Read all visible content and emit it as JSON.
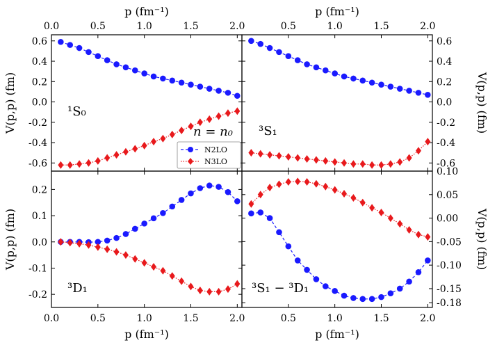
{
  "figure": {
    "x_axis_label": "p (fm⁻¹)",
    "y_axis_label": "V(p,p) (fm)"
  },
  "legend": {
    "density": "n = n₀",
    "entries": [
      {
        "name": "N2LO",
        "color": "#1a1aff",
        "marker": "circle",
        "line": "dashed"
      },
      {
        "name": "N3LO",
        "color": "#e8191c",
        "marker": "diamond",
        "line": "dotted"
      }
    ]
  },
  "chart_data": [
    {
      "type": "line",
      "panel": "top-left",
      "title": "¹S₀",
      "xlabel": "p (fm⁻¹)",
      "ylabel": "V(p,p) (fm)",
      "xlim": [
        0.0,
        2.05
      ],
      "ylim": [
        -0.68,
        0.66
      ],
      "xticks": [
        0.0,
        0.5,
        1.0,
        1.5,
        2.0
      ],
      "xticklabels": [
        "0.0",
        "0.5",
        "1.0",
        "1.5",
        "2.0"
      ],
      "yticks": [
        0.6,
        0.4,
        0.2,
        0.0,
        -0.2,
        -0.4,
        -0.6
      ],
      "yticklabels": [
        "0.6",
        "0.4",
        "0.2",
        "0.0",
        "-0.2",
        "-0.4",
        "-0.6"
      ],
      "x": [
        0.1,
        0.2,
        0.3,
        0.4,
        0.5,
        0.6,
        0.7,
        0.8,
        0.9,
        1.0,
        1.1,
        1.2,
        1.3,
        1.4,
        1.5,
        1.6,
        1.7,
        1.8,
        1.9,
        2.0
      ],
      "series": [
        {
          "name": "N2LO",
          "values": [
            0.59,
            0.56,
            0.53,
            0.49,
            0.45,
            0.41,
            0.37,
            0.34,
            0.31,
            0.28,
            0.25,
            0.23,
            0.21,
            0.19,
            0.17,
            0.15,
            0.13,
            0.11,
            0.09,
            0.06
          ]
        },
        {
          "name": "N3LO",
          "values": [
            -0.62,
            -0.62,
            -0.61,
            -0.6,
            -0.58,
            -0.55,
            -0.52,
            -0.49,
            -0.46,
            -0.43,
            -0.39,
            -0.36,
            -0.32,
            -0.28,
            -0.24,
            -0.2,
            -0.17,
            -0.14,
            -0.11,
            -0.09
          ]
        }
      ]
    },
    {
      "type": "line",
      "panel": "top-right",
      "title": "³S₁",
      "xlabel": "p (fm⁻¹)",
      "ylabel": "V(p,p) (fm)",
      "xlim": [
        0.0,
        2.05
      ],
      "ylim": [
        -0.68,
        0.66
      ],
      "xticks": [
        0.5,
        1.0,
        1.5,
        2.0
      ],
      "xticklabels": [
        "0.5",
        "1.0",
        "1.5",
        "2.0"
      ],
      "yticks": [
        0.6,
        0.4,
        0.2,
        0.0,
        -0.2,
        -0.4,
        -0.6
      ],
      "yticklabels": [
        "0.6",
        "0.4",
        "0.2",
        "0.0",
        "-0.2",
        "-0.4",
        "-0.6"
      ],
      "x": [
        0.1,
        0.2,
        0.3,
        0.4,
        0.5,
        0.6,
        0.7,
        0.8,
        0.9,
        1.0,
        1.1,
        1.2,
        1.3,
        1.4,
        1.5,
        1.6,
        1.7,
        1.8,
        1.9,
        2.0
      ],
      "series": [
        {
          "name": "N2LO",
          "values": [
            0.6,
            0.57,
            0.53,
            0.49,
            0.45,
            0.41,
            0.37,
            0.34,
            0.31,
            0.28,
            0.25,
            0.23,
            0.21,
            0.19,
            0.17,
            0.15,
            0.13,
            0.11,
            0.09,
            0.07
          ]
        },
        {
          "name": "N3LO",
          "values": [
            -0.5,
            -0.51,
            -0.52,
            -0.53,
            -0.54,
            -0.55,
            -0.56,
            -0.57,
            -0.58,
            -0.59,
            -0.6,
            -0.61,
            -0.61,
            -0.62,
            -0.62,
            -0.61,
            -0.59,
            -0.55,
            -0.48,
            -0.39
          ]
        }
      ]
    },
    {
      "type": "line",
      "panel": "bottom-left",
      "title": "³D₁",
      "xlabel": "p (fm⁻¹)",
      "ylabel": "V(p,p) (fm)",
      "xlim": [
        0.0,
        2.05
      ],
      "ylim": [
        -0.25,
        0.27
      ],
      "xticks": [
        0.0,
        0.5,
        1.0,
        1.5,
        2.0
      ],
      "xticklabels": [
        "0.0",
        "0.5",
        "1.0",
        "1.5",
        "2.0"
      ],
      "yticks": [
        0.2,
        0.1,
        0.0,
        -0.1,
        -0.2
      ],
      "yticklabels": [
        "0.2",
        "0.1",
        "0.0",
        "-0.1",
        "-0.2"
      ],
      "x": [
        0.1,
        0.2,
        0.3,
        0.4,
        0.5,
        0.6,
        0.7,
        0.8,
        0.9,
        1.0,
        1.1,
        1.2,
        1.3,
        1.4,
        1.5,
        1.6,
        1.7,
        1.8,
        1.9,
        2.0
      ],
      "series": [
        {
          "name": "N2LO",
          "values": [
            0.0,
            0.0,
            0.0,
            -0.001,
            0.0,
            0.005,
            0.015,
            0.03,
            0.05,
            0.07,
            0.09,
            0.11,
            0.135,
            0.16,
            0.185,
            0.205,
            0.215,
            0.21,
            0.19,
            0.155
          ]
        },
        {
          "name": "N3LO",
          "values": [
            0.0,
            -0.003,
            -0.007,
            -0.012,
            -0.02,
            -0.028,
            -0.038,
            -0.05,
            -0.065,
            -0.08,
            -0.095,
            -0.11,
            -0.13,
            -0.15,
            -0.17,
            -0.185,
            -0.19,
            -0.19,
            -0.18,
            -0.16
          ]
        }
      ]
    },
    {
      "type": "line",
      "panel": "bottom-right",
      "title": "³S₁ − ³D₁",
      "xlabel": "p (fm⁻¹)",
      "ylabel": "V(p,p) (fm)",
      "xlim": [
        0.0,
        2.05
      ],
      "ylim": [
        -0.19,
        0.1
      ],
      "xticks": [
        0.5,
        1.0,
        1.5,
        2.0
      ],
      "xticklabels": [
        "0.5",
        "1.0",
        "1.5",
        "2.0"
      ],
      "yticks": [
        0.1,
        0.05,
        0.0,
        -0.05,
        -0.1,
        -0.15,
        -0.18
      ],
      "yticklabels": [
        "0.10",
        "0.05",
        "0.00",
        "-0.05",
        "-0.10",
        "-0.15",
        "-0.18"
      ],
      "x": [
        0.1,
        0.2,
        0.3,
        0.4,
        0.5,
        0.6,
        0.7,
        0.8,
        0.9,
        1.0,
        1.1,
        1.2,
        1.3,
        1.4,
        1.5,
        1.6,
        1.7,
        1.8,
        1.9,
        2.0
      ],
      "series": [
        {
          "name": "N2LO",
          "values": [
            0.01,
            0.012,
            0.0,
            -0.03,
            -0.06,
            -0.09,
            -0.11,
            -0.13,
            -0.145,
            -0.155,
            -0.165,
            -0.17,
            -0.172,
            -0.172,
            -0.168,
            -0.16,
            -0.15,
            -0.135,
            -0.115,
            -0.09
          ]
        },
        {
          "name": "N3LO",
          "values": [
            0.03,
            0.05,
            0.065,
            0.072,
            0.077,
            0.078,
            0.077,
            0.073,
            0.067,
            0.06,
            0.052,
            0.043,
            0.033,
            0.022,
            0.012,
            0.0,
            -0.012,
            -0.025,
            -0.035,
            -0.04
          ]
        }
      ]
    }
  ]
}
